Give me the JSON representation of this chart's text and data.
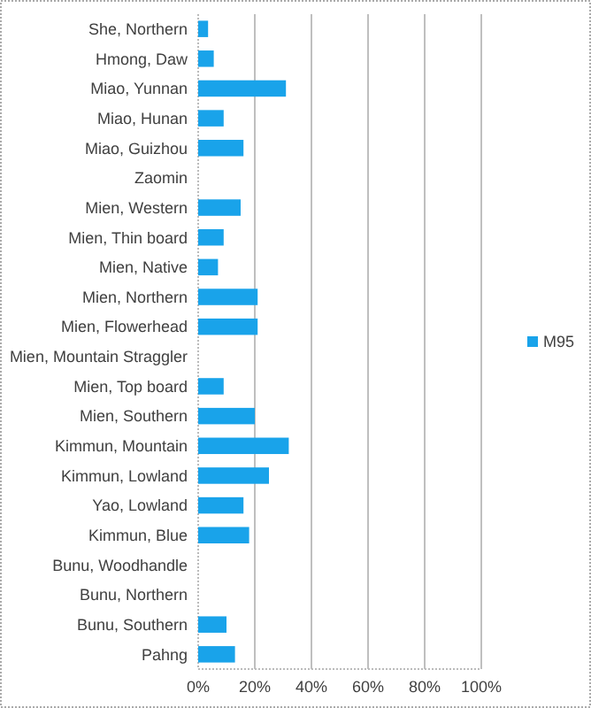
{
  "chart_data": {
    "type": "bar",
    "orientation": "horizontal",
    "categories": [
      "She, Northern",
      "Hmong, Daw",
      "Miao, Yunnan",
      "Miao, Hunan",
      "Miao, Guizhou",
      "Zaomin",
      "Mien, Western",
      "Mien, Thin board",
      "Mien, Native",
      "Mien, Northern",
      "Mien, Flowerhead",
      "Mien, Mountain Straggler",
      "Mien, Top board",
      "Mien, Southern",
      "Kimmun, Mountain",
      "Kimmun, Lowland",
      "Yao, Lowland",
      "Kimmun, Blue",
      "Bunu, Woodhandle",
      "Bunu, Northern",
      "Bunu, Southern",
      "Pahng"
    ],
    "series": [
      {
        "name": "M95",
        "color": "#19a3ea",
        "values": [
          3.5,
          5.5,
          31,
          9,
          16,
          0,
          15,
          9,
          7,
          21,
          21,
          0,
          9,
          20,
          32,
          25,
          16,
          18,
          0,
          0,
          10,
          13
        ]
      }
    ],
    "xlim": [
      0,
      100
    ],
    "xticks": [
      {
        "value": 0,
        "label": "0%"
      },
      {
        "value": 20,
        "label": "20%"
      },
      {
        "value": 40,
        "label": "40%"
      },
      {
        "value": 60,
        "label": "60%"
      },
      {
        "value": 80,
        "label": "80%"
      },
      {
        "value": 100,
        "label": "100%"
      }
    ],
    "grid": "x",
    "legend": "right"
  }
}
